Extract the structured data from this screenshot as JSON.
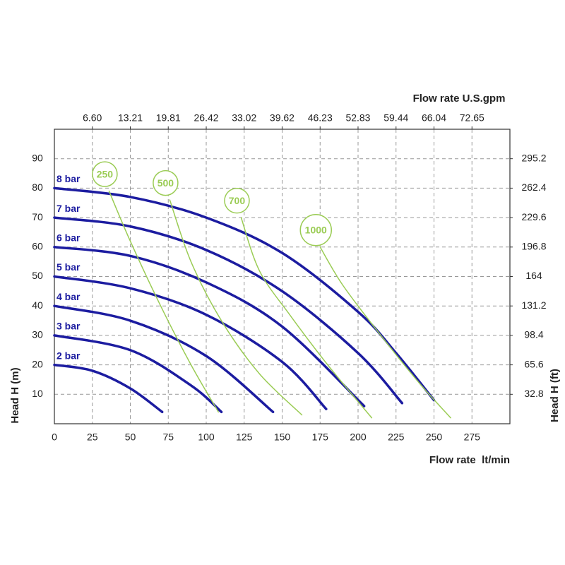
{
  "chart_data": {
    "type": "line",
    "x_label": "Flow rate  lt/min",
    "x2_label": "Flow rate U.S.gpm",
    "y_label": "Head H (m)",
    "y2_label": "Head H (ft)",
    "xlim": [
      0,
      300
    ],
    "xticks": [
      0,
      25,
      50,
      75,
      100,
      125,
      150,
      175,
      200,
      225,
      250,
      275
    ],
    "x2lim": [
      0,
      79.25
    ],
    "x2ticks": [
      {
        "value": 6.6,
        "label": "6.60"
      },
      13.21,
      19.81,
      26.42,
      33.02,
      39.62,
      46.23,
      52.83,
      59.44,
      66.04,
      72.65
    ],
    "ylim": [
      0,
      100
    ],
    "yticks": [
      10,
      20,
      30,
      40,
      50,
      60,
      70,
      80,
      90
    ],
    "y2lim": [
      0,
      328
    ],
    "y2ticks": [
      32.8,
      65.6,
      98.4,
      131.2,
      164,
      196.8,
      229.6,
      262.4,
      295.2
    ],
    "grid": true,
    "series": [
      {
        "name": "8 bar",
        "color": "#1c1ca0",
        "x": [
          0,
          50,
          100,
          150,
          200,
          225,
          250
        ],
        "values": [
          80,
          77,
          70,
          58,
          38,
          24,
          8
        ]
      },
      {
        "name": "7 bar",
        "color": "#1c1ca0",
        "x": [
          0,
          50,
          100,
          150,
          200,
          229
        ],
        "values": [
          70,
          67,
          59,
          45,
          24,
          7
        ]
      },
      {
        "name": "6 bar",
        "color": "#1c1ca0",
        "x": [
          0,
          50,
          100,
          150,
          204
        ],
        "values": [
          60,
          57,
          48,
          33,
          6
        ]
      },
      {
        "name": "5 bar",
        "color": "#1c1ca0",
        "x": [
          0,
          50,
          100,
          150,
          179
        ],
        "values": [
          50,
          46,
          37,
          21,
          5
        ]
      },
      {
        "name": "4 bar",
        "color": "#1c1ca0",
        "x": [
          0,
          50,
          100,
          144
        ],
        "values": [
          40,
          35,
          23,
          4
        ]
      },
      {
        "name": "3 bar",
        "color": "#1c1ca0",
        "x": [
          0,
          50,
          90,
          110
        ],
        "values": [
          30,
          25,
          13,
          4
        ]
      },
      {
        "name": "2 bar",
        "color": "#1c1ca0",
        "x": [
          0,
          25,
          50,
          71
        ],
        "values": [
          20,
          18,
          12,
          4
        ]
      },
      {
        "name": "250",
        "color": "#9bcc55",
        "x": [
          36,
          50,
          70,
          90,
          108
        ],
        "values": [
          79,
          62,
          40,
          20,
          4
        ]
      },
      {
        "name": "500",
        "color": "#9bcc55",
        "x": [
          76,
          90,
          110,
          135,
          163
        ],
        "values": [
          76,
          55,
          35,
          17,
          3
        ]
      },
      {
        "name": "700",
        "color": "#9bcc55",
        "x": [
          123,
          135,
          155,
          180,
          209
        ],
        "values": [
          70,
          52,
          37,
          20,
          2
        ]
      },
      {
        "name": "1000",
        "color": "#9bcc55",
        "x": [
          175,
          190,
          215,
          240,
          261
        ],
        "values": [
          60,
          47,
          30,
          14,
          2
        ]
      }
    ]
  }
}
